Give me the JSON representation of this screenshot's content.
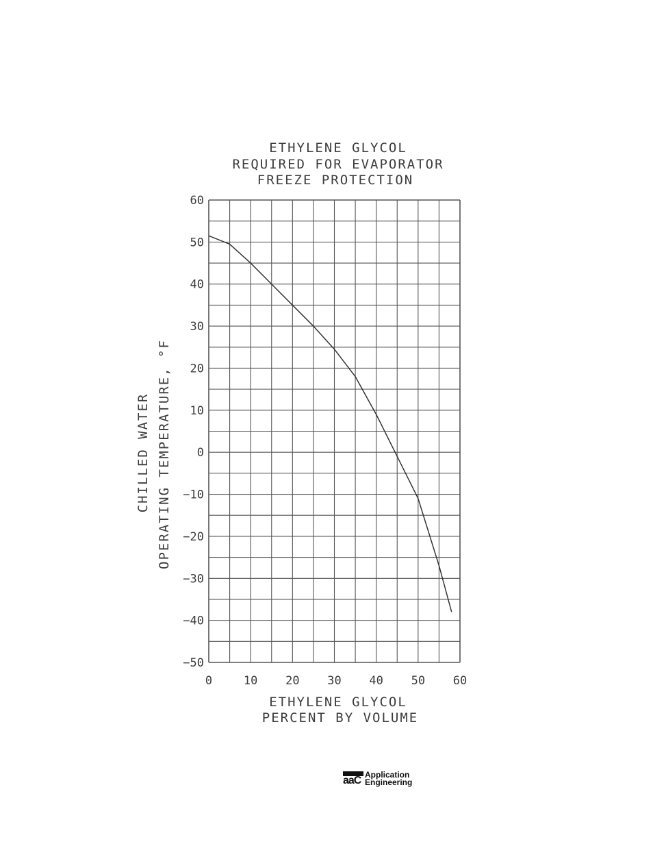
{
  "chart_data": {
    "type": "line",
    "title_lines": [
      "ETHYLENE GLYCOL",
      "REQUIRED FOR EVAPORATOR",
      "FREEZE PROTECTION"
    ],
    "xlabel_lines": [
      "ETHYLENE GLYCOL",
      "PERCENT BY VOLUME"
    ],
    "ylabel_lines": [
      "CHILLED WATER",
      "OPERATING TEMPERATURE, °F"
    ],
    "xlim": [
      0,
      60
    ],
    "ylim": [
      -50,
      60
    ],
    "x_ticks": [
      "0",
      "10",
      "20",
      "30",
      "40",
      "50",
      "60"
    ],
    "y_ticks": [
      "60",
      "50",
      "40",
      "30",
      "20",
      "10",
      "0",
      "-10",
      "-20",
      "-30",
      "-40",
      "-50"
    ],
    "grid": true,
    "series": [
      {
        "x": [
          0,
          5,
          10,
          15,
          20,
          25,
          30,
          35,
          40,
          45,
          50,
          55,
          58
        ],
        "y": [
          51.5,
          49.5,
          45,
          40,
          35,
          30,
          24.5,
          18,
          9,
          -1,
          -11,
          -27,
          -38
        ]
      }
    ]
  },
  "logo": {
    "mark": "aaC",
    "line1": "Application",
    "line2": "Engineering"
  },
  "colors": {
    "ink": "#3c3c3c",
    "grid": "#555555",
    "curve": "#333333"
  }
}
